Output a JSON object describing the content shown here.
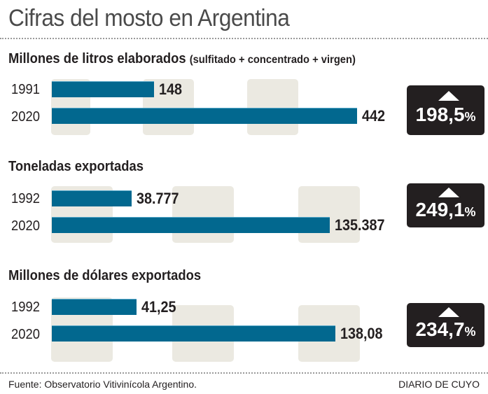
{
  "title": "Cifras del mosto en Argentina",
  "chart_data": [
    {
      "type": "bar",
      "orientation": "horizontal",
      "title": "Millones de litros elaborados",
      "subtitle": "(sulfitado + concentrado + virgen)",
      "categories": [
        "1991",
        "2020"
      ],
      "values": [
        148,
        442
      ],
      "value_labels": [
        "148",
        "442"
      ],
      "change": {
        "value": "198,5",
        "unit": "%",
        "direction": "up"
      },
      "xlim": [
        0,
        450
      ]
    },
    {
      "type": "bar",
      "orientation": "horizontal",
      "title": "Toneladas exportadas",
      "categories": [
        "1992",
        "2020"
      ],
      "values": [
        38777,
        135387
      ],
      "value_labels": [
        "38.777",
        "135.387"
      ],
      "change": {
        "value": "249,1",
        "unit": "%",
        "direction": "up"
      },
      "xlim": [
        0,
        135387
      ]
    },
    {
      "type": "bar",
      "orientation": "horizontal",
      "title": "Millones de dólares exportados",
      "categories": [
        "1992",
        "2020"
      ],
      "values": [
        41.25,
        138.08
      ],
      "value_labels": [
        "41,25",
        "138,08"
      ],
      "change": {
        "value": "234,7",
        "unit": "%",
        "direction": "up"
      },
      "xlim": [
        0,
        138.08
      ]
    }
  ],
  "colors": {
    "bar": "#02688f",
    "background_band": "#ebe9e1",
    "badge": "#231f20",
    "text": "#231f20"
  },
  "footer": {
    "source": "Fuente: Observatorio Vitivinícola Argentino.",
    "credit": "DIARIO DE CUYO"
  }
}
